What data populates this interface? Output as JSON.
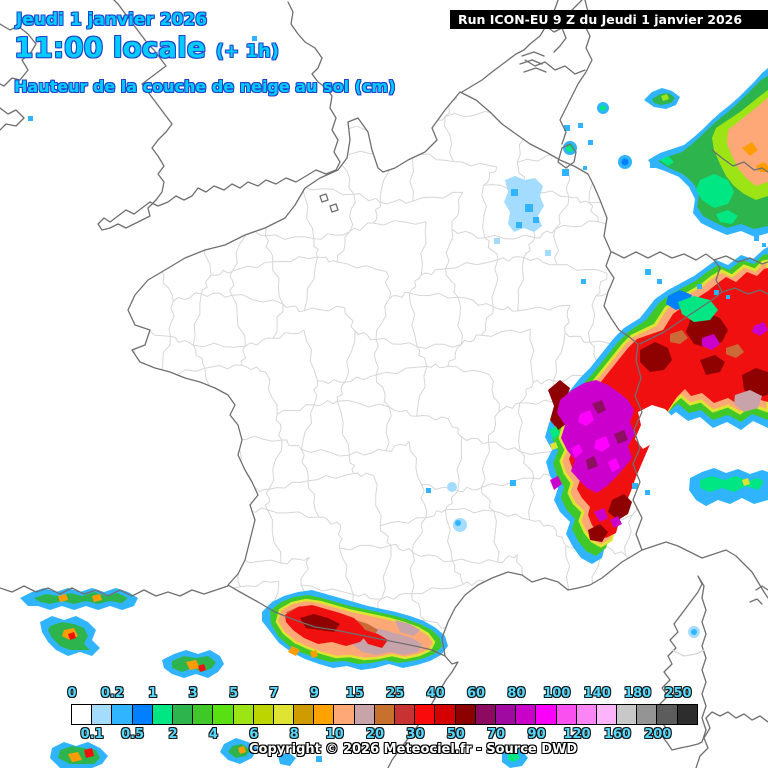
{
  "header": {
    "date": "Jeudi 1 janvier 2026",
    "time": "11:00 locale",
    "offset": "(+ 1h)",
    "parameter": "Hauteur de la couche de neige au sol (cm)",
    "run": "Run ICON-EU 9 Z du Jeudi 1 janvier 2026"
  },
  "footer": {
    "copyright": "Copyright © 2026 Meteociel.fr - Source DWD"
  },
  "legend": {
    "unit": "cm",
    "cells": [
      {
        "color": "#ffffff"
      },
      {
        "color": "#a4dcff"
      },
      {
        "color": "#30b4ff"
      },
      {
        "color": "#0080ff"
      },
      {
        "color": "#00e682"
      },
      {
        "color": "#2eb44d"
      },
      {
        "color": "#3fc828"
      },
      {
        "color": "#58e010"
      },
      {
        "color": "#9ce414"
      },
      {
        "color": "#bcd400"
      },
      {
        "color": "#dee431"
      },
      {
        "color": "#cf9c00"
      },
      {
        "color": "#ffa200"
      },
      {
        "color": "#ffa877"
      },
      {
        "color": "#c8a4aa"
      },
      {
        "color": "#c8702e"
      },
      {
        "color": "#c83232"
      },
      {
        "color": "#fa0a0a"
      },
      {
        "color": "#d40000"
      },
      {
        "color": "#8c0000"
      },
      {
        "color": "#8c0a5f"
      },
      {
        "color": "#a00aa0"
      },
      {
        "color": "#c800c8"
      },
      {
        "color": "#fa00fa"
      },
      {
        "color": "#fa50f0"
      },
      {
        "color": "#fa86f5"
      },
      {
        "color": "#fcb4fa"
      },
      {
        "color": "#c8c8c8"
      },
      {
        "color": "#949494"
      },
      {
        "color": "#5c5c5c"
      },
      {
        "color": "#2d2d2d"
      }
    ],
    "boundaries": [
      {
        "v": "0",
        "pos": "top"
      },
      {
        "v": "0.1",
        "pos": "bottom"
      },
      {
        "v": "0.2",
        "pos": "top"
      },
      {
        "v": "0.5",
        "pos": "bottom"
      },
      {
        "v": "1",
        "pos": "top"
      },
      {
        "v": "2",
        "pos": "bottom"
      },
      {
        "v": "3",
        "pos": "top"
      },
      {
        "v": "4",
        "pos": "bottom"
      },
      {
        "v": "5",
        "pos": "top"
      },
      {
        "v": "6",
        "pos": "bottom"
      },
      {
        "v": "7",
        "pos": "top"
      },
      {
        "v": "8",
        "pos": "bottom"
      },
      {
        "v": "9",
        "pos": "top"
      },
      {
        "v": "10",
        "pos": "bottom"
      },
      {
        "v": "15",
        "pos": "top"
      },
      {
        "v": "20",
        "pos": "bottom"
      },
      {
        "v": "25",
        "pos": "top"
      },
      {
        "v": "30",
        "pos": "bottom"
      },
      {
        "v": "40",
        "pos": "top"
      },
      {
        "v": "50",
        "pos": "bottom"
      },
      {
        "v": "60",
        "pos": "top"
      },
      {
        "v": "70",
        "pos": "bottom"
      },
      {
        "v": "80",
        "pos": "top"
      },
      {
        "v": "90",
        "pos": "bottom"
      },
      {
        "v": "100",
        "pos": "top"
      },
      {
        "v": "120",
        "pos": "bottom"
      },
      {
        "v": "140",
        "pos": "top"
      },
      {
        "v": "160",
        "pos": "bottom"
      },
      {
        "v": "180",
        "pos": "top"
      },
      {
        "v": "200",
        "pos": "bottom"
      },
      {
        "v": "250",
        "pos": "top"
      }
    ]
  },
  "colors": {
    "title_text": "#00ccff",
    "title_outline": "#2244cc",
    "tick_text": "#55d9ff",
    "coast_line": "#6f6f6f",
    "department_line": "#d6d6d6",
    "run_bar_bg": "#000000",
    "run_bar_text": "#ffffff"
  }
}
